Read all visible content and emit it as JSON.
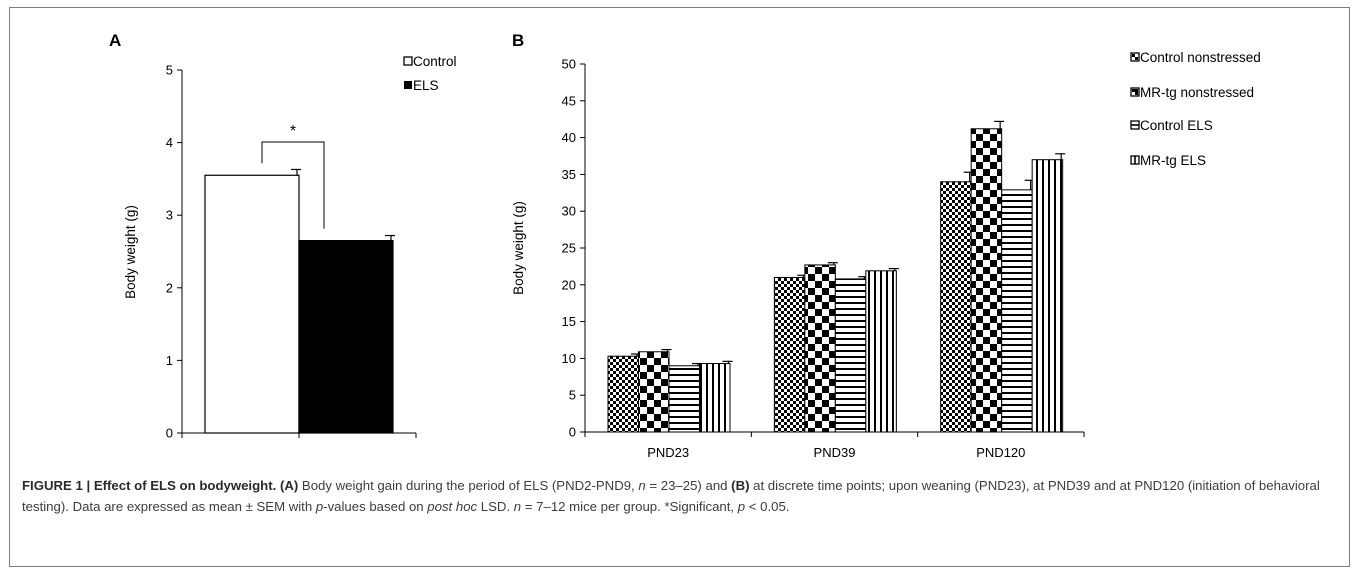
{
  "chart_data": [
    {
      "panel": "A",
      "type": "bar",
      "ylabel": "Body weight (g)",
      "xlabel": "",
      "ylim": [
        0,
        5
      ],
      "yticks": [
        0,
        1,
        2,
        3,
        4,
        5
      ],
      "categories": [
        "",
        ""
      ],
      "series": [
        {
          "name": "Control",
          "value": 3.55,
          "error": 0.08,
          "pattern": "white"
        },
        {
          "name": "ELS",
          "value": 2.65,
          "error": 0.07,
          "pattern": "black"
        }
      ],
      "significance": {
        "between": [
          "Control",
          "ELS"
        ],
        "label": "*"
      },
      "legend_position": "top-right",
      "grid": false
    },
    {
      "panel": "B",
      "type": "bar",
      "ylabel": "Body weight (g)",
      "xlabel": "",
      "ylim": [
        0,
        50
      ],
      "yticks": [
        0,
        5,
        10,
        15,
        20,
        25,
        30,
        35,
        40,
        45,
        50
      ],
      "categories": [
        "PND23",
        "PND39",
        "PND120"
      ],
      "series": [
        {
          "name": "Control nonstressed",
          "values": [
            10.3,
            21.0,
            34.0
          ],
          "errors": [
            0.3,
            0.3,
            1.3
          ],
          "pattern": "fine-check"
        },
        {
          "name": "MR-tg nonstressed",
          "values": [
            10.9,
            22.7,
            41.2
          ],
          "errors": [
            0.3,
            0.3,
            1.0
          ],
          "pattern": "coarse-check"
        },
        {
          "name": "Control ELS",
          "values": [
            9.0,
            20.8,
            32.9
          ],
          "errors": [
            0.3,
            0.3,
            1.3
          ],
          "pattern": "horizontal"
        },
        {
          "name": "MR-tg ELS",
          "values": [
            9.3,
            21.9,
            37.0
          ],
          "errors": [
            0.3,
            0.3,
            0.8
          ],
          "pattern": "vertical"
        }
      ],
      "legend_position": "top-right",
      "grid": false
    }
  ],
  "caption": {
    "label": "FIGURE 1 | Effect of ELS on bodyweight.",
    "part_a_label": "(A)",
    "part_a_text": " Body weight gain during the period of ELS (PND2-PND9, ",
    "n_italic": "n",
    "n_value_a": " = 23–25) and ",
    "part_b_label": "(B)",
    "part_b_text": " at discrete time points; upon weaning (PND23), at PND39 and at PND120 (initiation of behavioral testing). Data are expressed as mean ± SEM with ",
    "p_italic": "p",
    "p_text": "-values based on ",
    "post_hoc_italic": "post hoc",
    "lsd_text": " LSD. ",
    "n_italic_2": "n",
    "n_value_b": " = 7–12 mice per group. *Significant, ",
    "p_italic_2": "p",
    "p_threshold": " < 0.05."
  }
}
